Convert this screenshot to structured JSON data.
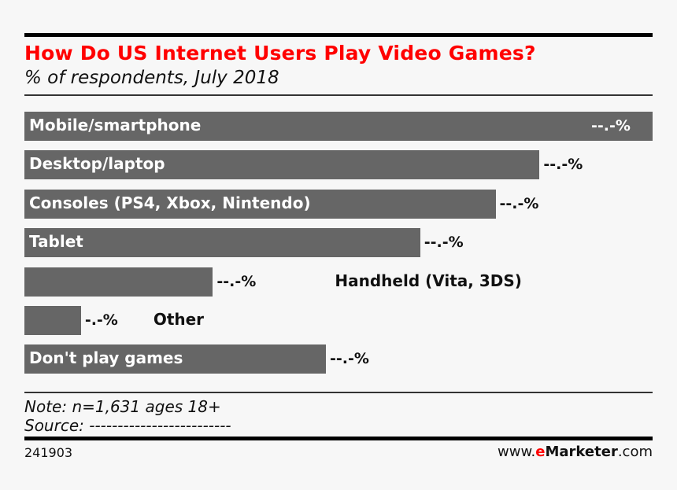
{
  "chart_data": {
    "type": "bar",
    "orientation": "horizontal",
    "title": "How Do US Internet Users Play Video Games?",
    "subtitle": "% of respondents, July 2018",
    "categories": [
      "Mobile/smartphone",
      "Desktop/laptop",
      "Consoles (PS4, Xbox, Nintendo)",
      "Tablet",
      "Handheld (Vita, 3DS)",
      "Other",
      "Don't play games"
    ],
    "values": [
      100,
      82,
      75,
      63,
      30,
      9,
      48
    ],
    "value_labels": [
      "--.-%",
      "--.-%",
      "--.-%",
      "--.-%",
      "--.-%",
      "-.-%",
      "--.-%"
    ],
    "values_note": "Actual values are masked in the image; numeric values are relative bar lengths (longest = 100).",
    "xlabel": "",
    "ylabel": "",
    "xlim": [
      0,
      100
    ],
    "grid": false,
    "legend": "none",
    "bar_color": "#666666"
  },
  "header": {
    "title": "How Do US Internet Users Play Video Games?",
    "subtitle": "% of respondents, July 2018",
    "title_color": "#ff0000"
  },
  "footer": {
    "note": "Note: n=1,631 ages 18+",
    "source": "Source: -------------------------",
    "chart_id": "241903",
    "brand_prefix": "www.",
    "brand_e": "e",
    "brand_name": "Marketer",
    "brand_suffix": ".com",
    "brand_color": "#ff0000"
  }
}
